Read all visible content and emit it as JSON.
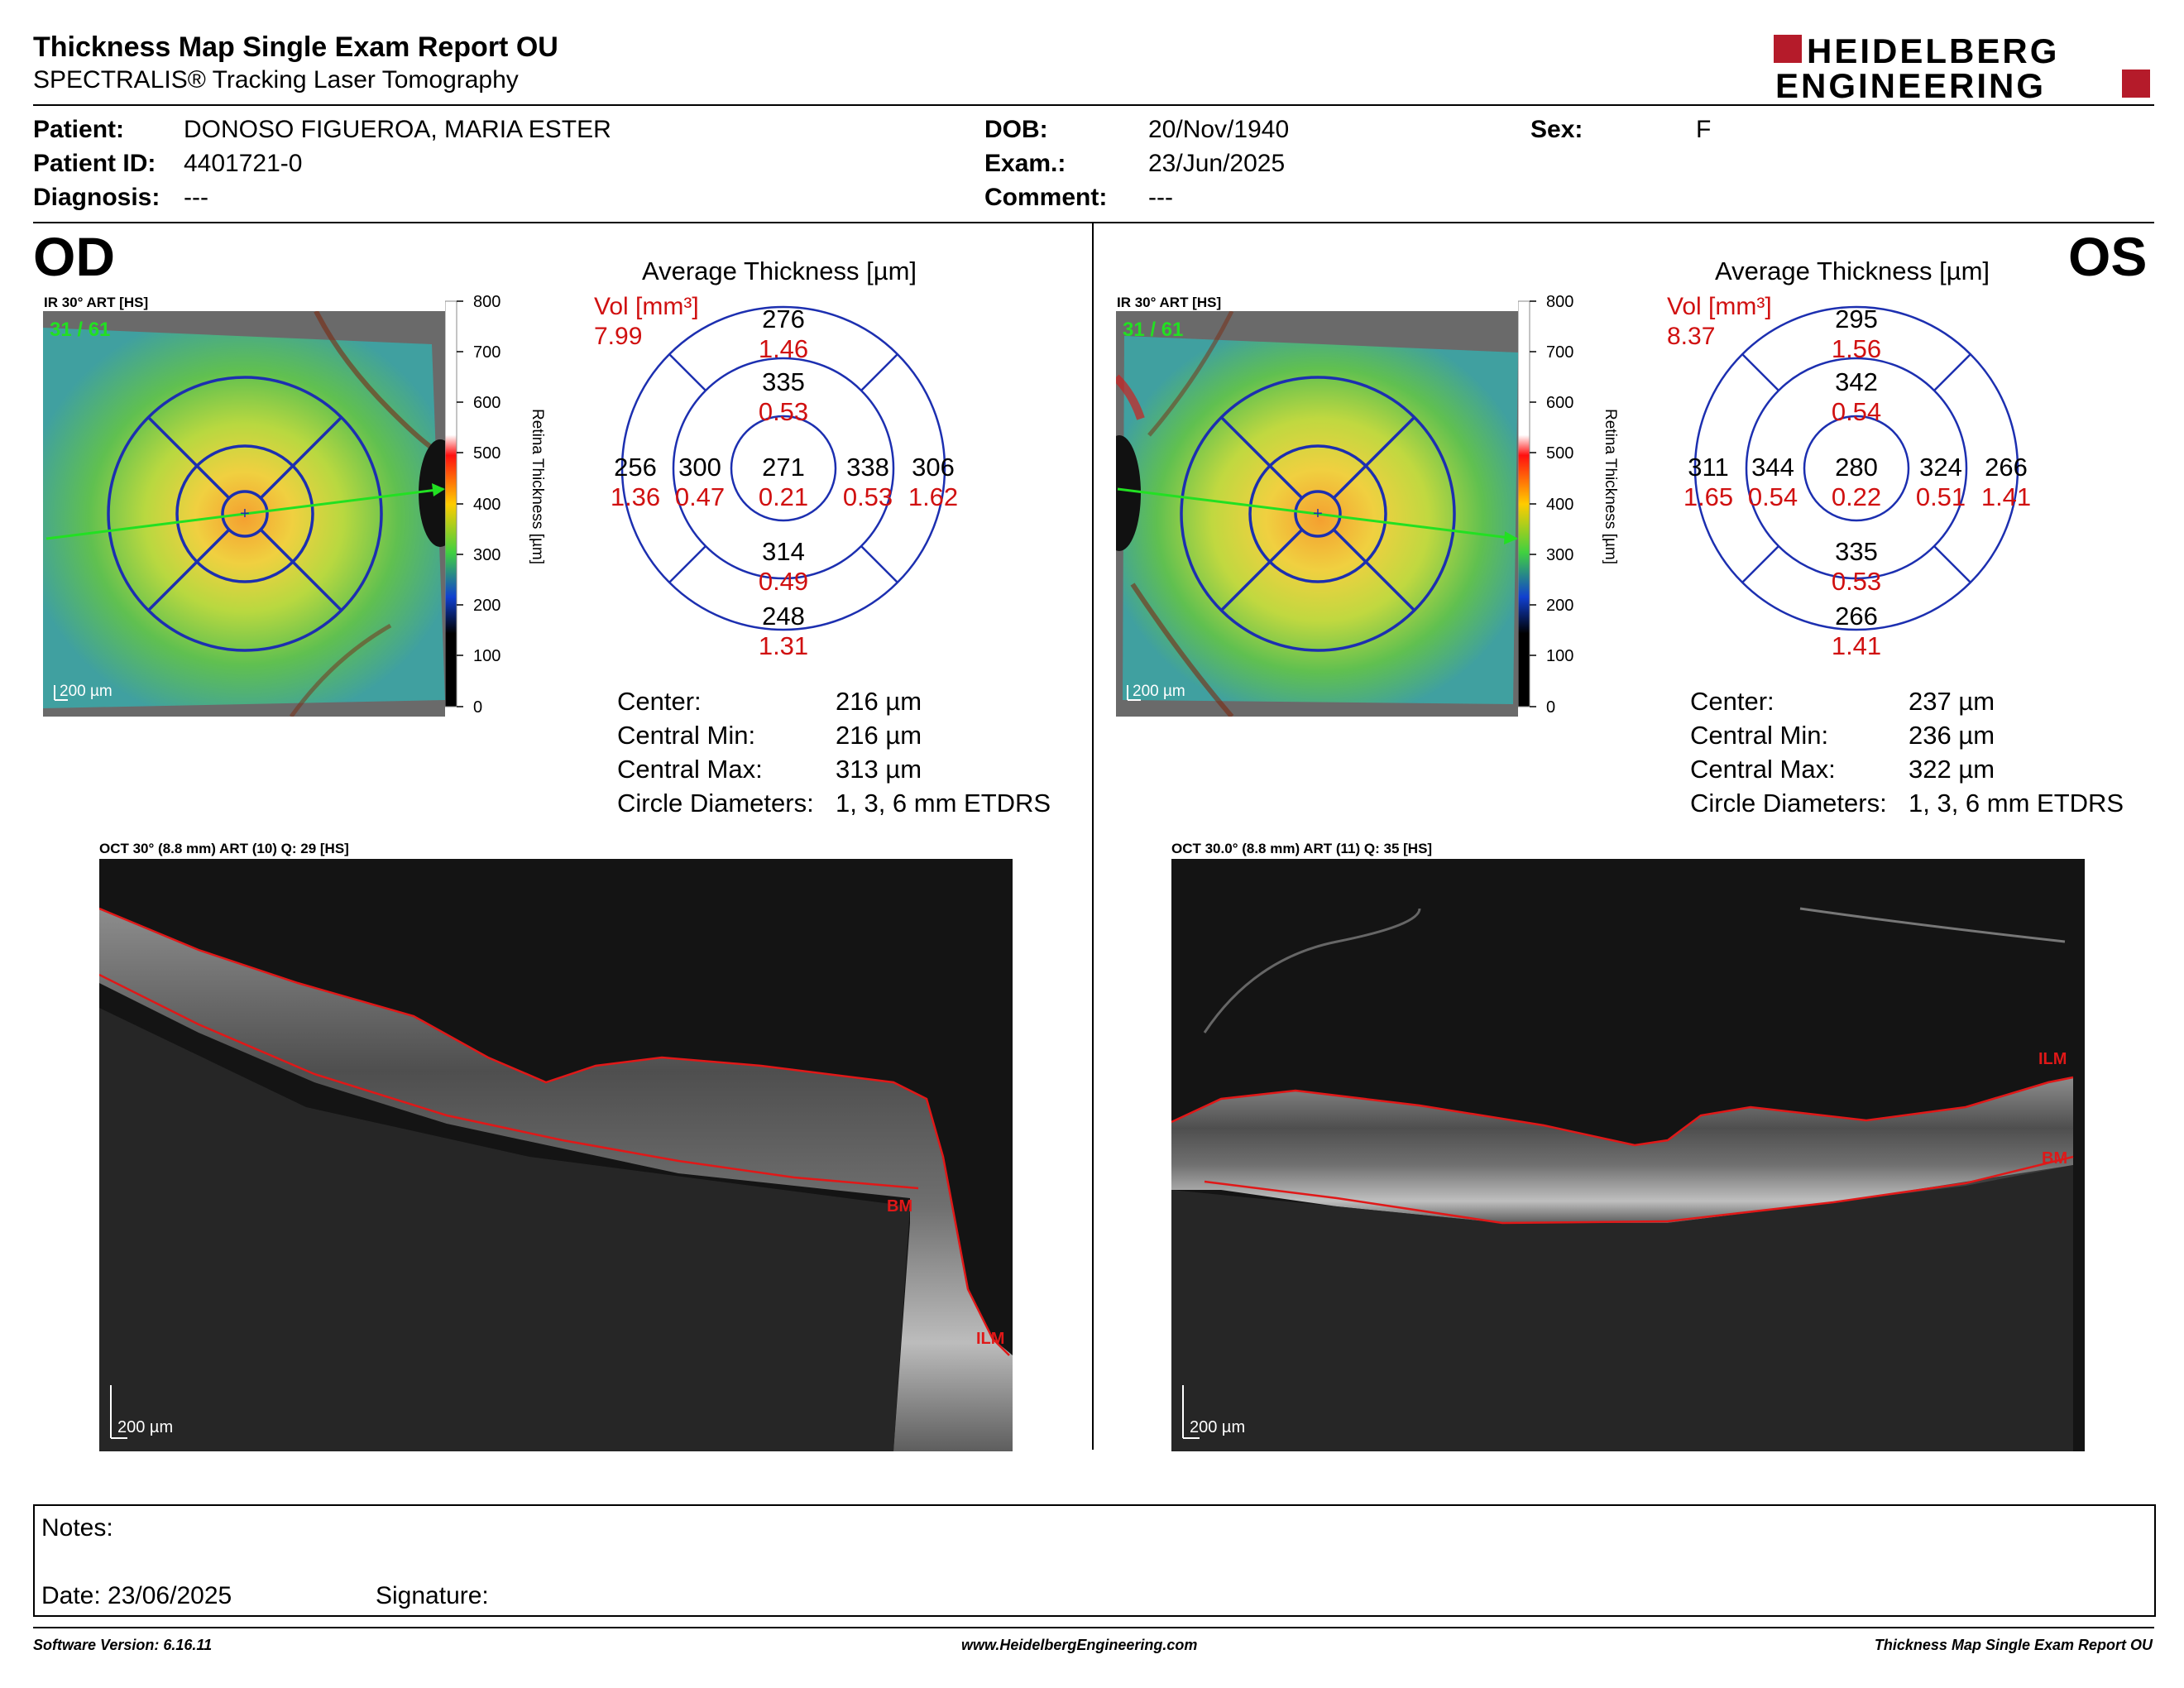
{
  "header": {
    "title": "Thickness Map Single Exam Report OU",
    "subtitle": "SPECTRALIS® Tracking Laser Tomography",
    "logo_line1": "HEIDELBERG",
    "logo_line2": "ENGINEERING"
  },
  "patient": {
    "patient_label": "Patient:",
    "patient_value": "DONOSO FIGUEROA, MARIA ESTER",
    "id_label": "Patient ID:",
    "id_value": "4401721-0",
    "diagnosis_label": "Diagnosis:",
    "diagnosis_value": "---",
    "dob_label": "DOB:",
    "dob_value": "20/Nov/1940",
    "exam_label": "Exam.:",
    "exam_value": "23/Jun/2025",
    "comment_label": "Comment:",
    "comment_value": "---",
    "sex_label": "Sex:",
    "sex_value": "F"
  },
  "colors": {
    "sector_lines": "#1c2fb0",
    "volume_text": "#d01010",
    "ilm_line": "#e01818",
    "logo_red": "#b51b2a",
    "green_arrow": "#22e022"
  },
  "od": {
    "eye_label": "OD",
    "ir_label": "IR 30° ART [HS]",
    "frame_count": "31 / 61",
    "scale_bar": "200 µm",
    "colorbar_ticks": [
      "800",
      "700",
      "600",
      "500",
      "400",
      "300",
      "200",
      "100",
      "0"
    ],
    "colorbar_title": "Retina Thickness [µm]",
    "avg_title": "Average Thickness [µm]",
    "vol_label": "Vol [mm³]",
    "vol_total": "7.99",
    "sectors": {
      "outer_top": {
        "t": "276",
        "v": "1.46"
      },
      "inner_top": {
        "t": "335",
        "v": "0.53"
      },
      "outer_left": {
        "t": "256",
        "v": "1.36"
      },
      "inner_left": {
        "t": "300",
        "v": "0.47"
      },
      "center": {
        "t": "271",
        "v": "0.21"
      },
      "inner_right": {
        "t": "338",
        "v": "0.53"
      },
      "outer_right": {
        "t": "306",
        "v": "1.62"
      },
      "inner_bottom": {
        "t": "314",
        "v": "0.49"
      },
      "outer_bottom": {
        "t": "248",
        "v": "1.31"
      }
    },
    "stats": [
      {
        "label": "Center:",
        "value": "216 µm"
      },
      {
        "label": "Central Min:",
        "value": "216 µm"
      },
      {
        "label": "Central Max:",
        "value": "313 µm"
      },
      {
        "label": "Circle Diameters:",
        "value": "1, 3, 6 mm ETDRS"
      }
    ],
    "oct_label": "OCT 30° (8.8 mm) ART (10) Q: 29 [HS]",
    "oct_scale": "200 µm",
    "layer_bm": "BM",
    "layer_ilm": "ILM"
  },
  "os": {
    "eye_label": "OS",
    "ir_label": "IR 30° ART [HS]",
    "frame_count": "31 / 61",
    "scale_bar": "200 µm",
    "colorbar_ticks": [
      "800",
      "700",
      "600",
      "500",
      "400",
      "300",
      "200",
      "100",
      "0"
    ],
    "colorbar_title": "Retina Thickness [µm]",
    "avg_title": "Average Thickness [µm]",
    "vol_label": "Vol [mm³]",
    "vol_total": "8.37",
    "sectors": {
      "outer_top": {
        "t": "295",
        "v": "1.56"
      },
      "inner_top": {
        "t": "342",
        "v": "0.54"
      },
      "outer_left": {
        "t": "311",
        "v": "1.65"
      },
      "inner_left": {
        "t": "344",
        "v": "0.54"
      },
      "center": {
        "t": "280",
        "v": "0.22"
      },
      "inner_right": {
        "t": "324",
        "v": "0.51"
      },
      "outer_right": {
        "t": "266",
        "v": "1.41"
      },
      "inner_bottom": {
        "t": "335",
        "v": "0.53"
      },
      "outer_bottom": {
        "t": "266",
        "v": "1.41"
      }
    },
    "stats": [
      {
        "label": "Center:",
        "value": "237 µm"
      },
      {
        "label": "Central Min:",
        "value": "236 µm"
      },
      {
        "label": "Central Max:",
        "value": "322 µm"
      },
      {
        "label": "Circle Diameters:",
        "value": "1, 3, 6 mm ETDRS"
      }
    ],
    "oct_label": "OCT 30.0° (8.8 mm) ART (11) Q: 35 [HS]",
    "oct_scale": "200 µm",
    "layer_bm": "BM",
    "layer_ilm": "ILM"
  },
  "notes": {
    "notes_label": "Notes:",
    "date_label": "Date: 23/06/2025",
    "signature_label": "Signature:"
  },
  "footer": {
    "software": "Software Version: 6.16.11",
    "website": "www.HeidelbergEngineering.com",
    "report": "Thickness Map Single Exam Report OU"
  }
}
